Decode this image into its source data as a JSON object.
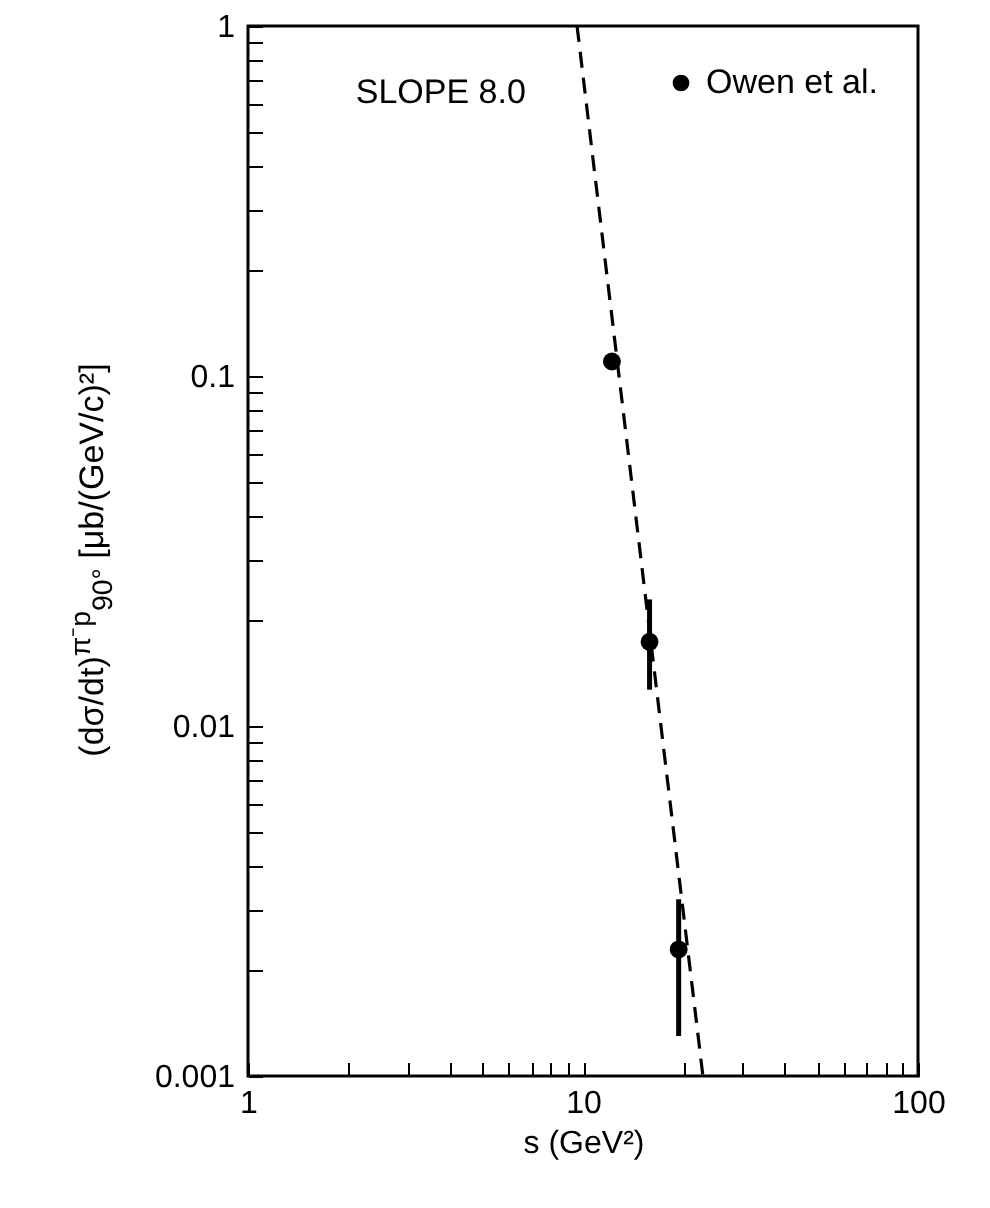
{
  "chart_data": {
    "type": "scatter",
    "xlabel": "s (GeV²)",
    "ylabel": "(dσ/dt)$^{π⁻p}$$_{90°}$ [μb/(GeV/c)²]",
    "log": "xy",
    "xlim": [
      1,
      100
    ],
    "ylim": [
      0.001,
      1
    ],
    "xticks": [
      1,
      {
        "value": 2,
        "label": null
      },
      {
        "value": 3,
        "label": null
      },
      {
        "value": 4,
        "label": null
      },
      {
        "value": 5,
        "label": null
      },
      {
        "value": 6,
        "label": null
      },
      {
        "value": 7,
        "label": null
      },
      {
        "value": 8,
        "label": null
      },
      {
        "value": 9,
        "label": null
      },
      10,
      {
        "value": 20,
        "label": null
      },
      {
        "value": 30,
        "label": null
      },
      {
        "value": 40,
        "label": null
      },
      {
        "value": 50,
        "label": null
      },
      {
        "value": 60,
        "label": null
      },
      {
        "value": 70,
        "label": null
      },
      {
        "value": 80,
        "label": null
      },
      {
        "value": 90,
        "label": null
      },
      100
    ],
    "yticks": [
      0.001,
      {
        "value": 0.002,
        "label": null
      },
      {
        "value": 0.003,
        "label": null
      },
      {
        "value": 0.004,
        "label": null
      },
      {
        "value": 0.005,
        "label": null
      },
      {
        "value": 0.006,
        "label": null
      },
      {
        "value": 0.007,
        "label": null
      },
      {
        "value": 0.008,
        "label": null
      },
      {
        "value": 0.009,
        "label": null
      },
      0.01,
      {
        "value": 0.02,
        "label": null
      },
      {
        "value": 0.03,
        "label": null
      },
      {
        "value": 0.04,
        "label": null
      },
      {
        "value": 0.05,
        "label": null
      },
      {
        "value": 0.06,
        "label": null
      },
      {
        "value": 0.07,
        "label": null
      },
      {
        "value": 0.08,
        "label": null
      },
      {
        "value": 0.09,
        "label": null
      },
      0.1,
      {
        "value": 0.2,
        "label": null
      },
      {
        "value": 0.3,
        "label": null
      },
      {
        "value": 0.4,
        "label": null
      },
      {
        "value": 0.5,
        "label": null
      },
      {
        "value": 0.6,
        "label": null
      },
      {
        "value": 0.7,
        "label": null
      },
      {
        "value": 0.8,
        "label": null
      },
      {
        "value": 0.9,
        "label": null
      },
      1
    ],
    "marker": "circle",
    "legend": "top right",
    "annotations": [
      {
        "text": "SLOPE 8.0",
        "x": 10.2,
        "y": 0.55
      }
    ],
    "series": [
      {
        "name": "Owen et al.",
        "color": "#000000",
        "x": [
          12.2,
          15.8,
          19.3
        ],
        "values": [
          0.11,
          0.0174,
          0.0023
        ],
        "errors": [
          null,
          [
            0.0127,
            0.023
          ],
          [
            0.0013,
            0.0032
          ]
        ]
      },
      {
        "type": "line",
        "marker": "none",
        "color": "#000000",
        "line_style": "dashed",
        "x": [
          9.6,
          22.8
        ],
        "values": [
          1,
          0.001
        ]
      }
    ]
  }
}
